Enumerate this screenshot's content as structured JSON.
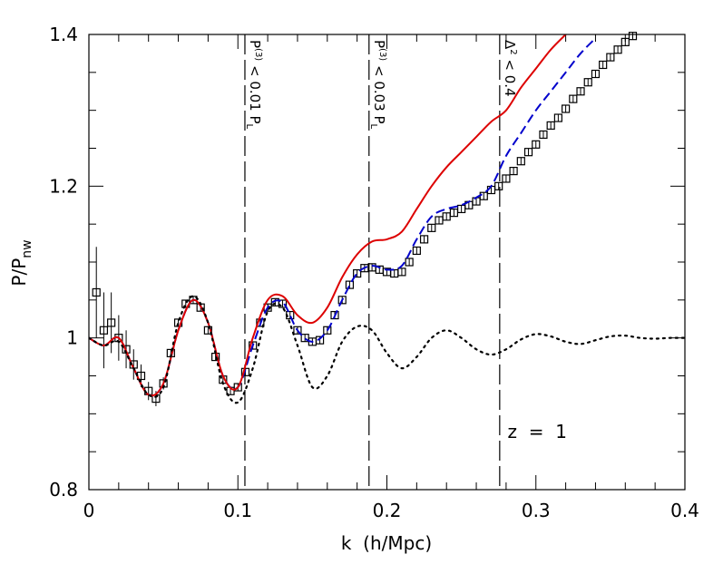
{
  "chart_data": {
    "type": "line",
    "xlabel": "k  (h/Mpc)",
    "ylabel": {
      "main": "P/P",
      "sub": "nw"
    },
    "xlim": [
      0,
      0.4
    ],
    "ylim": [
      0.8,
      1.4
    ],
    "xticks": [
      0,
      0.1,
      0.2,
      0.3,
      0.4
    ],
    "yticks": [
      0.8,
      1,
      1.2,
      1.4
    ],
    "xminor": [
      0.02,
      0.04,
      0.06,
      0.08,
      0.12,
      0.14,
      0.16,
      0.18,
      0.22,
      0.24,
      0.26,
      0.28,
      0.32,
      0.34,
      0.36,
      0.38
    ],
    "yminor": [
      0.85,
      0.9,
      0.95,
      1.05,
      1.1,
      1.15,
      1.25,
      1.3,
      1.35
    ],
    "vlines": [
      {
        "x": 0.1047,
        "label": {
          "main": "P",
          "sup": "(3)",
          "rest": " < 0.01 P",
          "sub": "L"
        }
      },
      {
        "x": 0.188,
        "label": {
          "main": "P",
          "sup": "(3)",
          "rest": " < 0.03 P",
          "sub": "L"
        }
      },
      {
        "x": 0.2757,
        "label": {
          "main": "Δ",
          "sup": "2",
          "rest": " < 0.4",
          "sub": ""
        }
      }
    ],
    "annotation": {
      "text": "z  =  1",
      "x": 0.281,
      "y": 0.868
    },
    "series": [
      {
        "style": "points",
        "color": "#000000",
        "x": [
          0.005,
          0.01,
          0.015,
          0.02,
          0.025,
          0.03,
          0.035,
          0.04,
          0.045,
          0.05,
          0.055,
          0.06,
          0.065,
          0.07,
          0.075,
          0.08,
          0.085,
          0.09,
          0.095,
          0.1,
          0.105,
          0.11,
          0.115,
          0.12,
          0.125,
          0.13,
          0.135,
          0.14,
          0.145,
          0.15,
          0.155,
          0.16,
          0.165,
          0.17,
          0.175,
          0.18,
          0.185,
          0.19,
          0.195,
          0.2,
          0.205,
          0.21,
          0.215,
          0.22,
          0.225,
          0.23,
          0.235,
          0.24,
          0.245,
          0.25,
          0.255,
          0.26,
          0.265,
          0.27,
          0.275,
          0.28,
          0.285,
          0.29,
          0.295,
          0.3,
          0.305,
          0.31,
          0.315,
          0.32,
          0.325,
          0.33,
          0.335,
          0.34,
          0.345,
          0.35,
          0.355,
          0.36,
          0.365
        ],
        "values": [
          1.06,
          1.01,
          1.02,
          1.0,
          0.985,
          0.965,
          0.95,
          0.93,
          0.92,
          0.94,
          0.98,
          1.02,
          1.045,
          1.05,
          1.04,
          1.01,
          0.975,
          0.945,
          0.93,
          0.935,
          0.955,
          0.99,
          1.02,
          1.04,
          1.047,
          1.045,
          1.03,
          1.01,
          1.0,
          0.995,
          0.997,
          1.01,
          1.03,
          1.05,
          1.07,
          1.085,
          1.092,
          1.093,
          1.09,
          1.087,
          1.085,
          1.087,
          1.1,
          1.115,
          1.13,
          1.145,
          1.155,
          1.16,
          1.165,
          1.17,
          1.175,
          1.18,
          1.187,
          1.195,
          1.2,
          1.21,
          1.22,
          1.233,
          1.245,
          1.255,
          1.268,
          1.28,
          1.29,
          1.302,
          1.315,
          1.325,
          1.337,
          1.348,
          1.36,
          1.37,
          1.38,
          1.39,
          1.398
        ],
        "errors": [
          0.06,
          0.05,
          0.04,
          0.03,
          0.025,
          0.02,
          0.015,
          0.012,
          0.01,
          0.008,
          0.005,
          0.005,
          0.005,
          0.005,
          0.005,
          0.005,
          0.005,
          0.005,
          0.005,
          0.005,
          0.005,
          0.005,
          0.005,
          0.005,
          0.005,
          0.005,
          0.005,
          0.005,
          0.005,
          0.005,
          0.005,
          0.005,
          0.005,
          0.005,
          0.005,
          0.005,
          0.005,
          0.005,
          0.005,
          0.005,
          0.005,
          0.005,
          0.005,
          0.005,
          0.005,
          0.005,
          0.005,
          0.005,
          0.005,
          0.005,
          0.005,
          0.005,
          0.005,
          0.005,
          0.005,
          0.005,
          0.005,
          0.005,
          0.005,
          0.005,
          0.005,
          0.005,
          0.005,
          0.005,
          0.005,
          0.005,
          0.005,
          0.005,
          0.005,
          0.005,
          0.005,
          0.005,
          0.005
        ]
      },
      {
        "style": "dashed",
        "color": "#0000cc",
        "x": [
          0,
          0.01,
          0.02,
          0.03,
          0.04,
          0.05,
          0.06,
          0.07,
          0.08,
          0.09,
          0.1,
          0.11,
          0.12,
          0.13,
          0.14,
          0.15,
          0.16,
          0.17,
          0.18,
          0.19,
          0.2,
          0.21,
          0.22,
          0.23,
          0.24,
          0.25,
          0.26,
          0.27,
          0.28,
          0.29,
          0.3,
          0.31,
          0.32,
          0.33,
          0.34
        ],
        "values": [
          1.0,
          0.99,
          1.0,
          0.96,
          0.925,
          0.94,
          1.01,
          1.05,
          1.02,
          0.95,
          0.935,
          0.99,
          1.04,
          1.047,
          1.01,
          0.995,
          1.01,
          1.05,
          1.085,
          1.095,
          1.09,
          1.095,
          1.13,
          1.16,
          1.17,
          1.175,
          1.185,
          1.2,
          1.24,
          1.27,
          1.3,
          1.325,
          1.35,
          1.375,
          1.395
        ]
      },
      {
        "style": "solid",
        "color": "#dd0000",
        "x": [
          0,
          0.01,
          0.02,
          0.03,
          0.04,
          0.05,
          0.06,
          0.07,
          0.08,
          0.09,
          0.1,
          0.11,
          0.12,
          0.13,
          0.14,
          0.15,
          0.16,
          0.17,
          0.18,
          0.19,
          0.2,
          0.21,
          0.22,
          0.23,
          0.24,
          0.25,
          0.26,
          0.27,
          0.28,
          0.29,
          0.3,
          0.31,
          0.32
        ],
        "values": [
          1.0,
          0.99,
          1.0,
          0.96,
          0.925,
          0.94,
          1.01,
          1.05,
          1.02,
          0.95,
          0.935,
          1.0,
          1.05,
          1.055,
          1.03,
          1.02,
          1.04,
          1.08,
          1.11,
          1.127,
          1.13,
          1.14,
          1.17,
          1.2,
          1.225,
          1.245,
          1.265,
          1.285,
          1.3,
          1.33,
          1.355,
          1.38,
          1.4
        ]
      },
      {
        "style": "dotted",
        "color": "#000000",
        "x": [
          0,
          0.01,
          0.02,
          0.03,
          0.04,
          0.05,
          0.06,
          0.07,
          0.08,
          0.09,
          0.1,
          0.11,
          0.12,
          0.13,
          0.14,
          0.15,
          0.16,
          0.17,
          0.18,
          0.19,
          0.2,
          0.21,
          0.22,
          0.23,
          0.24,
          0.25,
          0.26,
          0.27,
          0.28,
          0.29,
          0.3,
          0.31,
          0.32,
          0.33,
          0.34,
          0.35,
          0.36,
          0.37,
          0.38,
          0.39,
          0.4
        ],
        "values": [
          1.0,
          0.99,
          0.995,
          0.96,
          0.925,
          0.935,
          1.02,
          1.055,
          1.02,
          0.94,
          0.915,
          0.96,
          1.035,
          1.04,
          0.99,
          0.935,
          0.95,
          0.995,
          1.015,
          1.01,
          0.98,
          0.96,
          0.975,
          1.0,
          1.01,
          1.0,
          0.985,
          0.978,
          0.985,
          0.998,
          1.005,
          1.002,
          0.995,
          0.992,
          0.997,
          1.002,
          1.003,
          1.0,
          0.999,
          1.0,
          1.0
        ]
      }
    ]
  }
}
